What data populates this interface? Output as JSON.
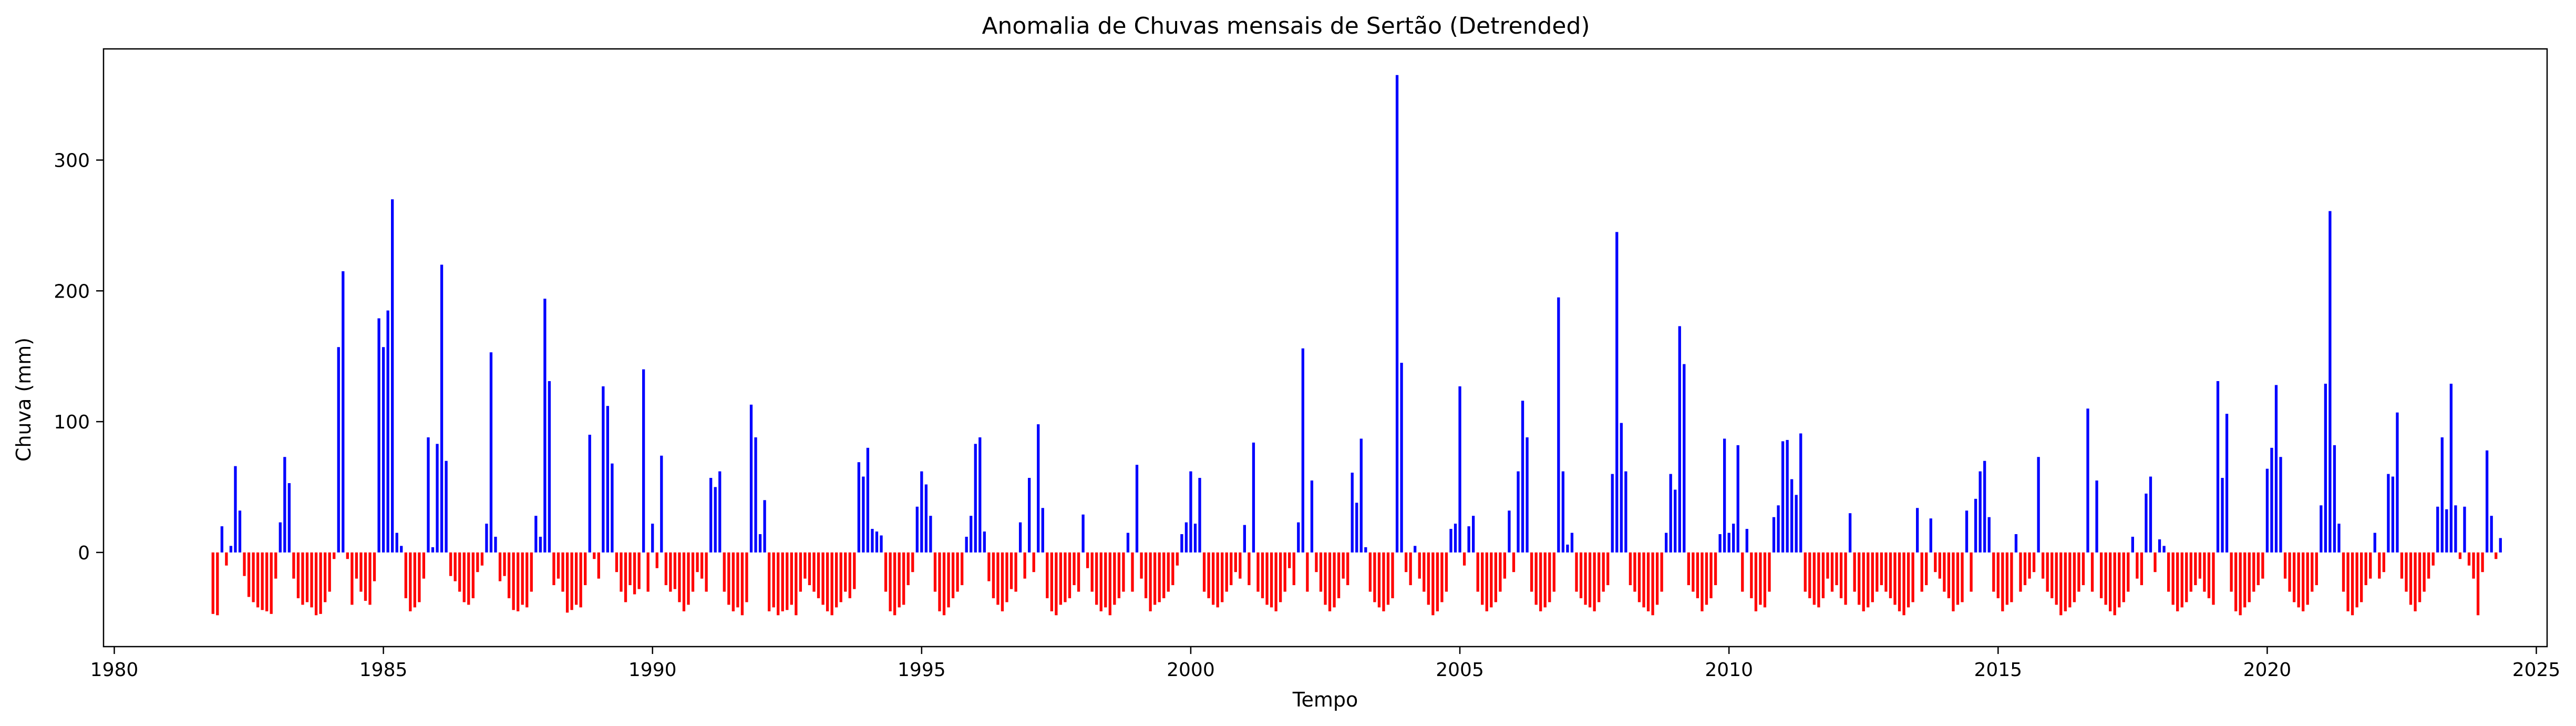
{
  "chart_data": {
    "type": "bar",
    "title": "Anomalia de Chuvas mensais de Sertão (Detrended)",
    "xlabel": "Tempo",
    "ylabel": "Chuva (mm)",
    "xlim": [
      1979.8,
      2025.2
    ],
    "ylim": [
      -72,
      385
    ],
    "x_ticks": [
      1980,
      1985,
      1990,
      1995,
      2000,
      2005,
      2010,
      2015,
      2020,
      2025
    ],
    "y_ticks": [
      0,
      100,
      200,
      300
    ],
    "positive_color": "#0000ff",
    "negative_color": "#ff0000",
    "grid": false,
    "start": "1981-11",
    "values": [
      -47,
      -48,
      20,
      -10,
      5,
      66,
      32,
      -18,
      -34,
      -38,
      -42,
      -44,
      -45,
      -47,
      -20,
      23,
      73,
      53,
      -20,
      -35,
      -40,
      -38,
      -42,
      -48,
      -47,
      -38,
      -30,
      -5,
      157,
      215,
      -5,
      -40,
      -20,
      -30,
      -37,
      -40,
      -22,
      179,
      157,
      185,
      270,
      15,
      5,
      -35,
      -45,
      -42,
      -38,
      -20,
      88,
      4,
      83,
      220,
      70,
      -18,
      -22,
      -30,
      -38,
      -40,
      -35,
      -15,
      -10,
      22,
      153,
      12,
      -22,
      -18,
      -35,
      -44,
      -45,
      -40,
      -42,
      -30,
      28,
      12,
      194,
      131,
      -25,
      -20,
      -30,
      -46,
      -44,
      -40,
      -42,
      -25,
      90,
      -5,
      -20,
      127,
      112,
      68,
      -15,
      -30,
      -38,
      -25,
      -32,
      -28,
      140,
      -30,
      22,
      -12,
      74,
      -25,
      -30,
      -28,
      -38,
      -45,
      -40,
      -30,
      -15,
      -20,
      -30,
      57,
      50,
      62,
      -30,
      -40,
      -45,
      -42,
      -48,
      -38,
      113,
      88,
      14,
      40,
      -45,
      -42,
      -48,
      -45,
      -44,
      -40,
      -48,
      -30,
      -20,
      -25,
      -30,
      -35,
      -40,
      -45,
      -48,
      -42,
      -38,
      -30,
      -35,
      -28,
      69,
      58,
      80,
      18,
      16,
      13,
      -30,
      -45,
      -48,
      -42,
      -40,
      -25,
      -15,
      35,
      62,
      52,
      28,
      -30,
      -45,
      -48,
      -42,
      -35,
      -30,
      -25,
      12,
      28,
      83,
      88,
      16,
      -22,
      -35,
      -40,
      -45,
      -38,
      -28,
      -30,
      23,
      -20,
      57,
      -15,
      98,
      34,
      -35,
      -45,
      -48,
      -40,
      -38,
      -35,
      -25,
      -30,
      29,
      -12,
      -30,
      -40,
      -45,
      -42,
      -48,
      -40,
      -35,
      -30,
      15,
      -30,
      67,
      -20,
      -35,
      -45,
      -40,
      -38,
      -35,
      -30,
      -25,
      -10,
      14,
      23,
      62,
      22,
      57,
      -30,
      -35,
      -40,
      -42,
      -38,
      -30,
      -25,
      -15,
      -20,
      21,
      -25,
      84,
      -30,
      -35,
      -40,
      -42,
      -45,
      -38,
      -30,
      -12,
      -25,
      23,
      156,
      -30,
      55,
      -15,
      -30,
      -40,
      -45,
      -42,
      -35,
      -20,
      -25,
      61,
      38,
      87,
      4,
      -30,
      -38,
      -42,
      -45,
      -40,
      -35,
      365,
      145,
      -15,
      -25,
      5,
      -20,
      -30,
      -40,
      -48,
      -45,
      -38,
      -30,
      18,
      22,
      127,
      -10,
      20,
      28,
      -30,
      -40,
      -45,
      -42,
      -38,
      -30,
      -20,
      32,
      -15,
      62,
      116,
      88,
      -30,
      -40,
      -45,
      -42,
      -38,
      -30,
      195,
      62,
      6,
      15,
      -30,
      -35,
      -40,
      -42,
      -45,
      -38,
      -30,
      -25,
      60,
      245,
      99,
      62,
      -25,
      -30,
      -38,
      -42,
      -45,
      -48,
      -40,
      -30,
      15,
      60,
      48,
      173,
      144,
      -25,
      -30,
      -35,
      -45,
      -40,
      -35,
      -25,
      14,
      87,
      15,
      22,
      82,
      -30,
      18,
      -35,
      -45,
      -40,
      -42,
      -30,
      27,
      36,
      85,
      86,
      56,
      44,
      91,
      -30,
      -35,
      -40,
      -42,
      -35,
      -20,
      -30,
      -25,
      -35,
      -40,
      30,
      -30,
      -40,
      -45,
      -42,
      -38,
      -30,
      -25,
      -30,
      -35,
      -40,
      -45,
      -48,
      -42,
      -38,
      34,
      -30,
      -25,
      26,
      -15,
      -20,
      -30,
      -35,
      -45,
      -40,
      -38,
      32,
      -30,
      41,
      62,
      70,
      27,
      -30,
      -35,
      -45,
      -40,
      -38,
      14,
      -30,
      -25,
      -20,
      -15,
      73,
      -20,
      -30,
      -35,
      -40,
      -48,
      -45,
      -42,
      -38,
      -30,
      -25,
      110,
      -30,
      55,
      -35,
      -40,
      -45,
      -48,
      -42,
      -38,
      -30,
      12,
      -20,
      -25,
      45,
      58,
      -15,
      10,
      5,
      -30,
      -40,
      -45,
      -42,
      -38,
      -30,
      -25,
      -20,
      -30,
      -35,
      -40,
      131,
      57,
      106,
      -30,
      -45,
      -48,
      -42,
      -38,
      -30,
      -25,
      -20,
      64,
      80,
      128,
      73,
      -20,
      -30,
      -38,
      -42,
      -45,
      -40,
      -30,
      -25,
      36,
      129,
      261,
      82,
      22,
      -30,
      -45,
      -48,
      -42,
      -38,
      -25,
      -20,
      15,
      -20,
      -15,
      60,
      58,
      107,
      -20,
      -30,
      -40,
      -45,
      -38,
      -30,
      -20,
      -10,
      35,
      88,
      33,
      129,
      36,
      -5,
      35,
      -10,
      -20,
      -48,
      -15,
      78,
      28,
      -5,
      11
    ]
  }
}
